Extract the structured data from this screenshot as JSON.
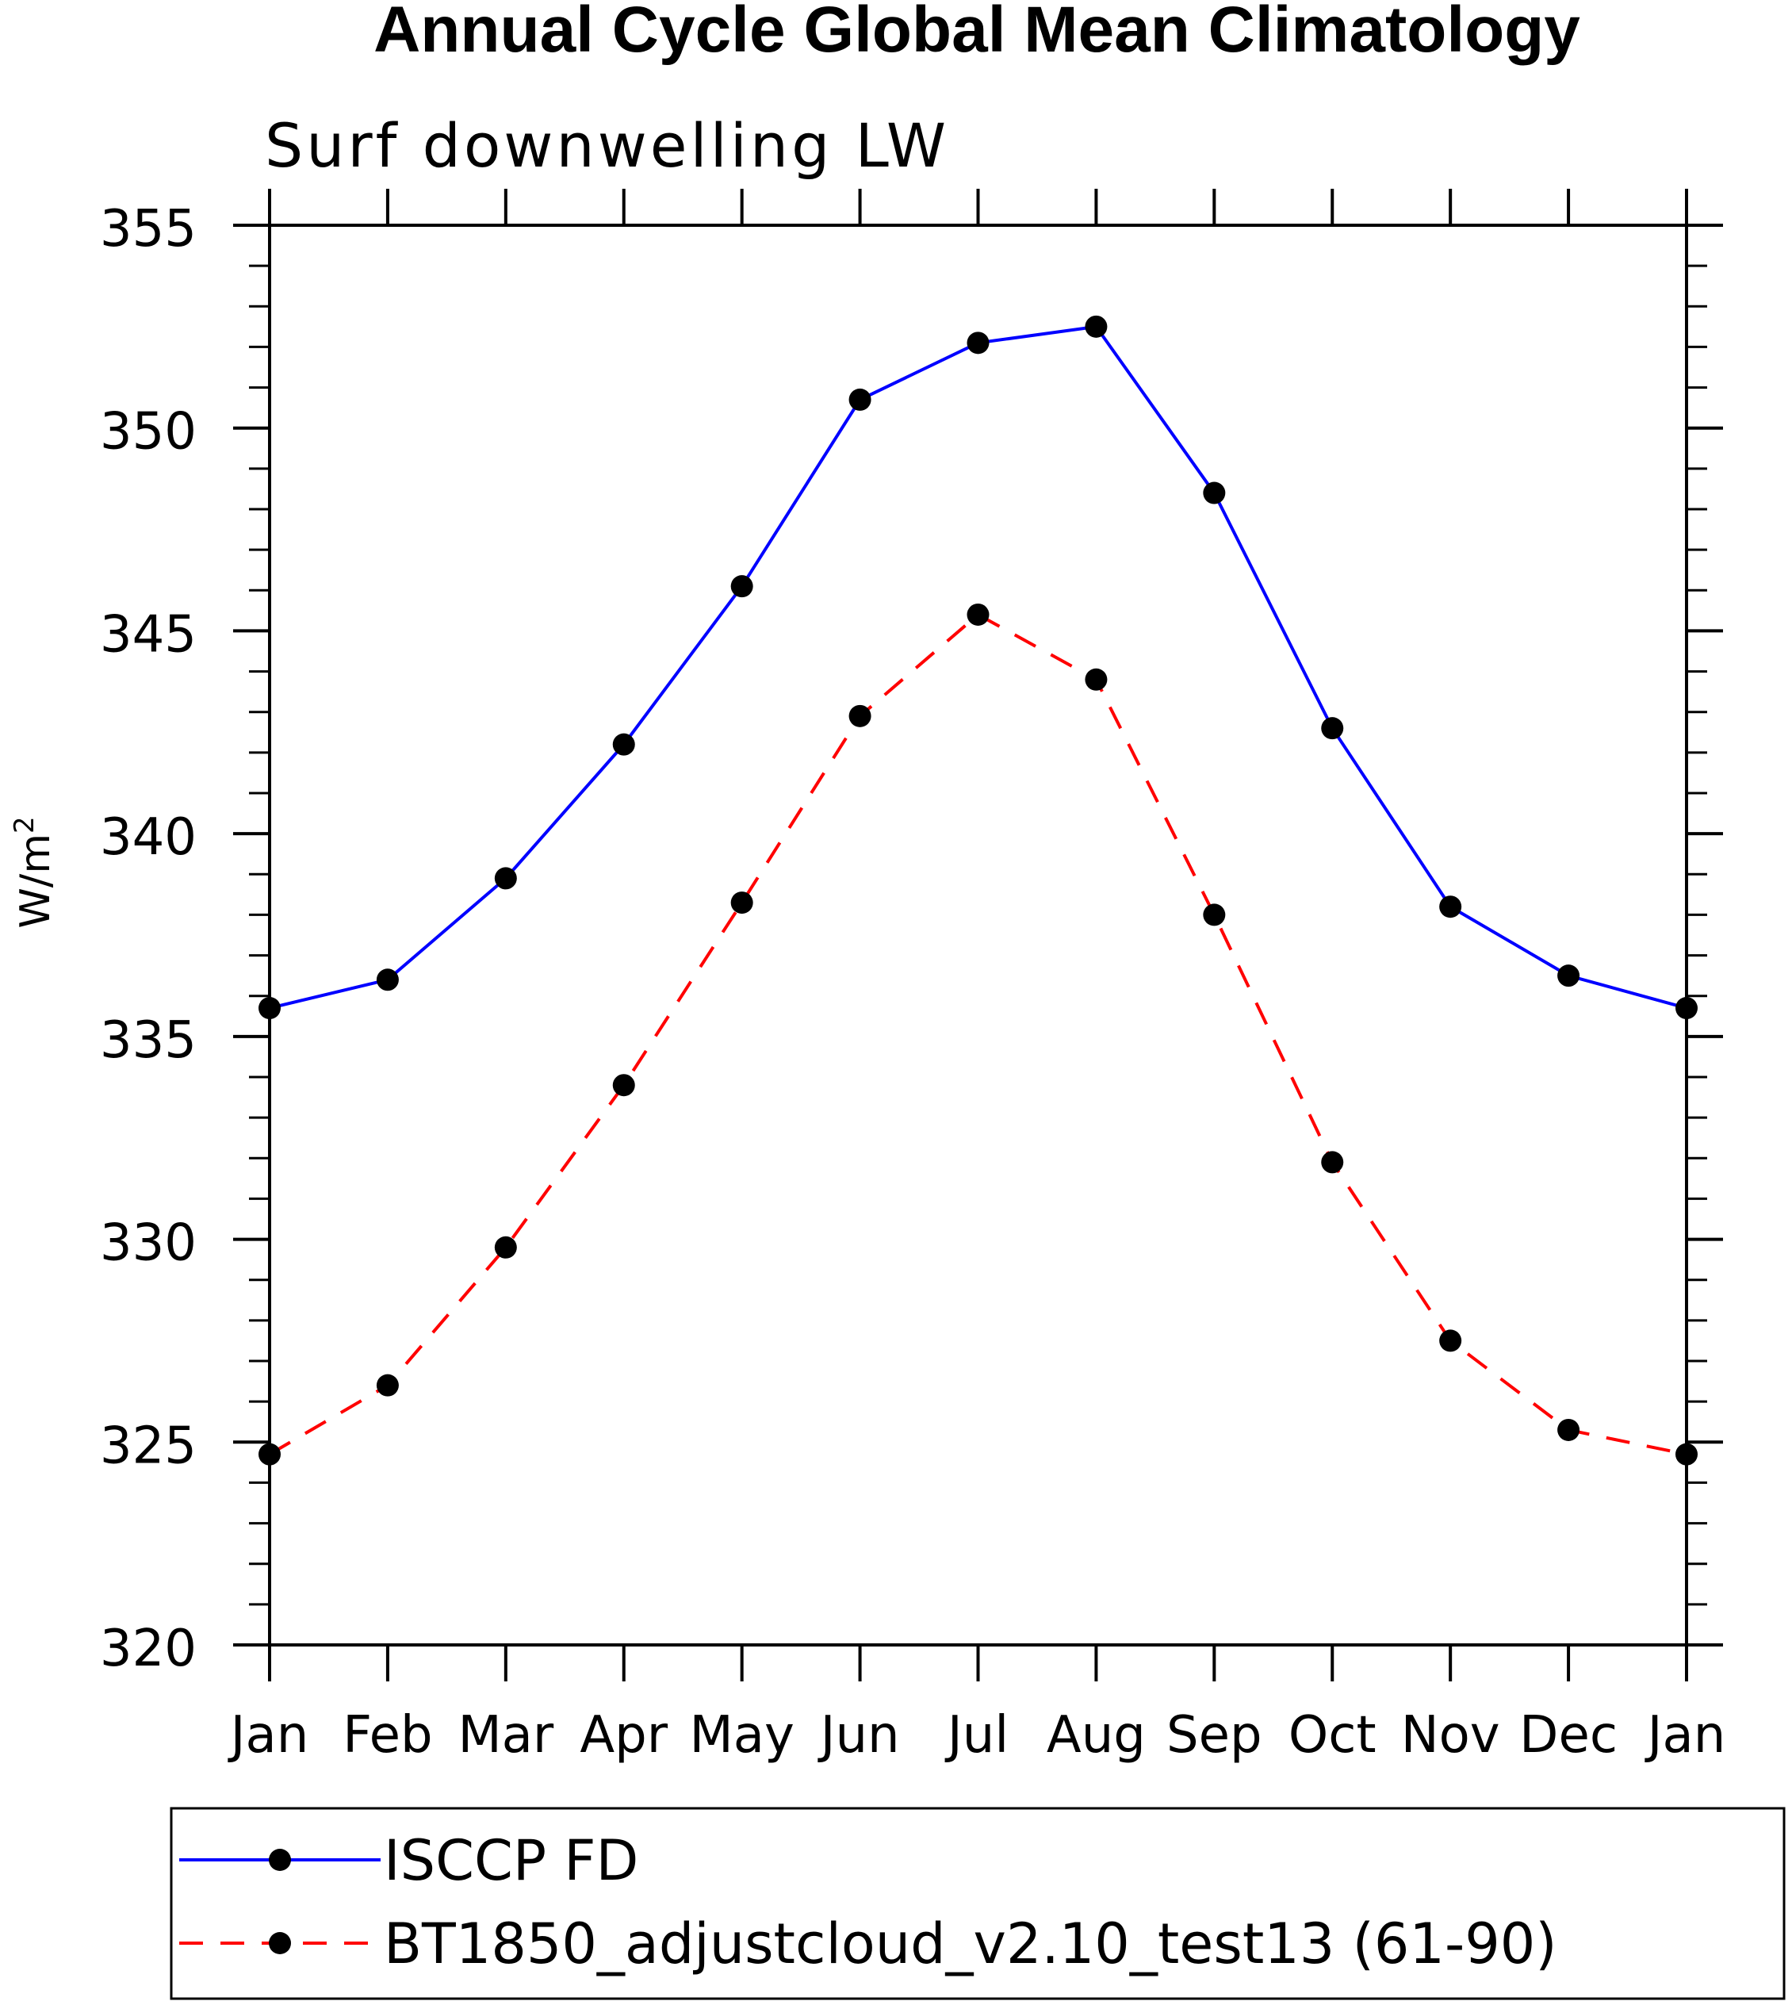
{
  "chart_data": {
    "type": "line",
    "title": "Annual Cycle Global Mean Climatology",
    "subtitle": "Surf downwelling LW",
    "xlabel": "",
    "ylabel": "W/m",
    "ylabel_superscript": "2",
    "categories": [
      "Jan",
      "Feb",
      "Mar",
      "Apr",
      "May",
      "Jun",
      "Jul",
      "Aug",
      "Sep",
      "Oct",
      "Nov",
      "Dec",
      "Jan"
    ],
    "ylim": [
      320,
      355
    ],
    "yticks": [
      320,
      325,
      330,
      335,
      340,
      345,
      350,
      355
    ],
    "yticks_labels": [
      "320",
      "325",
      "330",
      "335",
      "340",
      "345",
      "350",
      "355"
    ],
    "grid": false,
    "legend_position": "bottom",
    "series": [
      {
        "name": "ISCCP FD",
        "color": "#0000ff",
        "dash": "solid",
        "marker": "filled-circle",
        "values": [
          335.7,
          336.4,
          338.9,
          342.2,
          346.1,
          350.7,
          352.1,
          352.5,
          348.4,
          342.6,
          338.2,
          336.5,
          335.7
        ]
      },
      {
        "name": "BT1850_adjustcloud_v2.10_test13 (61-90)",
        "color": "#ff0000",
        "dash": "dashed",
        "marker": "filled-circle",
        "values": [
          324.7,
          326.4,
          329.8,
          333.8,
          338.3,
          342.9,
          345.4,
          343.8,
          338.0,
          331.9,
          327.5,
          325.3,
          324.7
        ]
      }
    ]
  }
}
